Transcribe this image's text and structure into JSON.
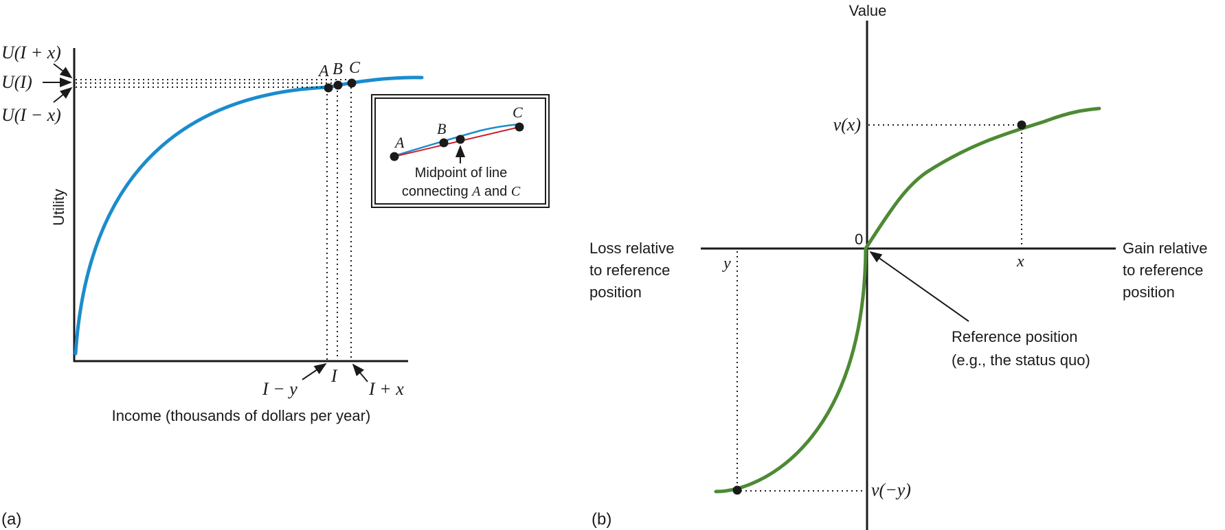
{
  "panel_a": {
    "panel_label": "(a)",
    "y_axis_label": "Utility",
    "x_axis_label": "Income (thousands of dollars per year)",
    "y_labels": {
      "u_plus": "U(I + x)",
      "u_mid": "U(I)",
      "u_minus": "U(I − x)"
    },
    "x_labels": {
      "i_minus": "I − y",
      "i": "I",
      "i_plus": "I + x"
    },
    "points": {
      "a": "A",
      "b": "B",
      "c": "C"
    },
    "inset": {
      "points": {
        "a": "A",
        "b": "B",
        "c": "C"
      },
      "caption_line1": "Midpoint of line",
      "caption_line2_pre": "connecting ",
      "caption_a": "A",
      "caption_and": " and ",
      "caption_c": "C"
    },
    "colors": {
      "curve": "#1b8ccc",
      "chord": "#d0202a",
      "axis": "#1a1a1a"
    }
  },
  "panel_b": {
    "panel_label": "(b)",
    "y_axis_label": "Value",
    "origin_label": "0",
    "loss_label": [
      "Loss relative",
      "to reference",
      "position"
    ],
    "gain_label": [
      "Gain relative",
      "to reference",
      "position"
    ],
    "x_point": "x",
    "y_point": "y",
    "vx_label": "v(x)",
    "vy_label": "v(−y)",
    "ref_label": [
      "Reference position",
      "(e.g., the status quo)"
    ],
    "colors": {
      "curve": "#4d8a34",
      "axis": "#1a1a1a"
    }
  }
}
